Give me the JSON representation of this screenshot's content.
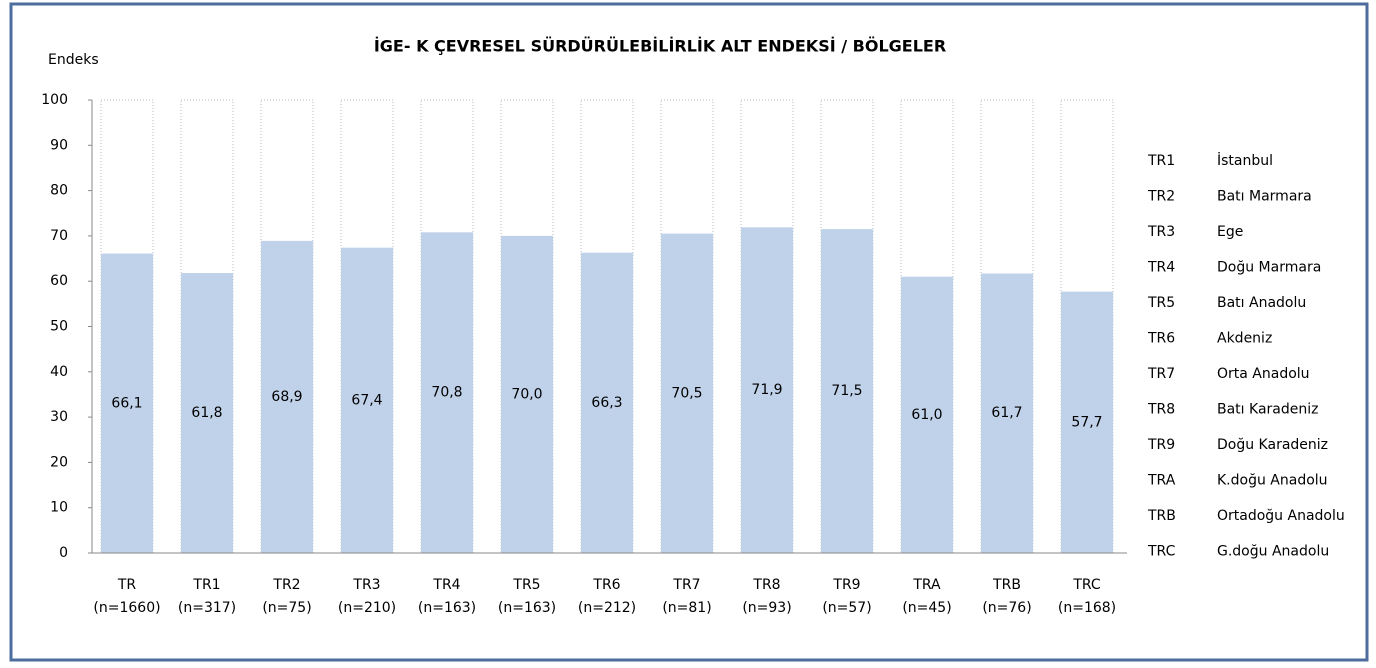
{
  "chart_data": {
    "type": "bar",
    "title": "İGE- K  ÇEVRESEL SÜRDÜRÜLEBİLİRLİK ALT ENDEKSİ / BÖLGELER",
    "y_label": "Endeks",
    "categories": [
      "TR",
      "TR1",
      "TR2",
      "TR3",
      "TR4",
      "TR5",
      "TR6",
      "TR7",
      "TR8",
      "TR9",
      "TRA",
      "TRB",
      "TRC"
    ],
    "sample_sizes": [
      "(n=1660)",
      "(n=317)",
      "(n=75)",
      "(n=210)",
      "(n=163)",
      "(n=163)",
      "(n=212)",
      "(n=81)",
      "(n=93)",
      "(n=57)",
      "(n=45)",
      "(n=76)",
      "(n=168)"
    ],
    "values": [
      66.1,
      61.8,
      68.9,
      67.4,
      70.8,
      70.0,
      66.3,
      70.5,
      71.9,
      71.5,
      61.0,
      61.7,
      57.7
    ],
    "value_labels": [
      "66,1",
      "61,8",
      "68,9",
      "67,4",
      "70,8",
      "70,0",
      "66,3",
      "70,5",
      "71,9",
      "71,5",
      "61,0",
      "61,7",
      "57,7"
    ],
    "color": "#c0d2ea",
    "ylim": [
      0,
      100
    ],
    "yticks": [
      0,
      10,
      20,
      30,
      40,
      50,
      60,
      70,
      80,
      90,
      100
    ],
    "region_legend": [
      {
        "code": "TR1",
        "name": "İstanbul"
      },
      {
        "code": "TR2",
        "name": "Batı Marmara"
      },
      {
        "code": "TR3",
        "name": "Ege"
      },
      {
        "code": "TR4",
        "name": "Doğu Marmara"
      },
      {
        "code": "TR5",
        "name": "Batı Anadolu"
      },
      {
        "code": "TR6",
        "name": "Akdeniz"
      },
      {
        "code": "TR7",
        "name": "Orta Anadolu"
      },
      {
        "code": "TR8",
        "name": "Batı Karadeniz"
      },
      {
        "code": "TR9",
        "name": "Doğu Karadeniz"
      },
      {
        "code": "TRA",
        "name": "K.doğu Anadolu"
      },
      {
        "code": "TRB",
        "name": "Ortadoğu Anadolu"
      },
      {
        "code": "TRC",
        "name": "G.doğu Anadolu"
      }
    ]
  }
}
